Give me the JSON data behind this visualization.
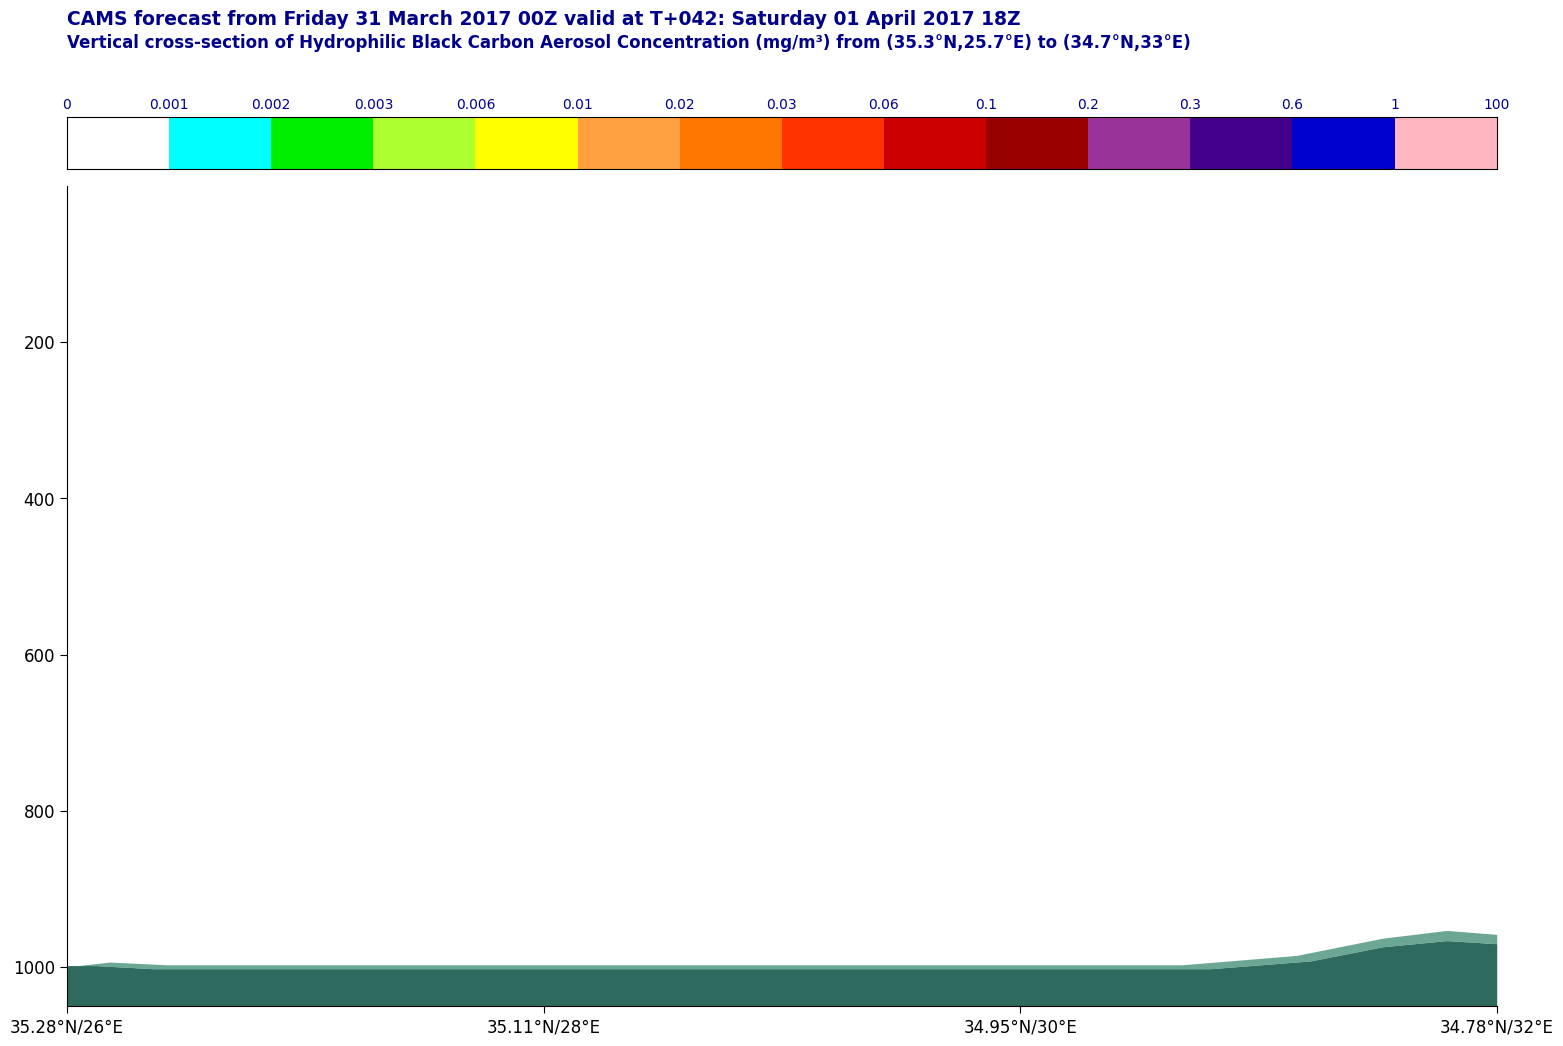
{
  "title1": "CAMS forecast from Friday 31 March 2017 00Z valid at T+042: Saturday 01 April 2017 18Z",
  "title2": "Vertical cross-section of Hydrophilic Black Carbon Aerosol Concentration (mg/m³) from (35.3°N,25.7°E) to (34.7°N,33°E)",
  "title_color": "#00008B",
  "colorbar_levels": [
    0,
    0.001,
    0.002,
    0.003,
    0.006,
    0.01,
    0.02,
    0.03,
    0.06,
    0.1,
    0.2,
    0.3,
    0.6,
    1,
    100
  ],
  "colorbar_colors": [
    "#FFFFFF",
    "#00FFFF",
    "#00EE00",
    "#ADFF2F",
    "#FFFF00",
    "#FFA040",
    "#FF7700",
    "#FF3300",
    "#CC0000",
    "#990000",
    "#993399",
    "#440088",
    "#0000CC",
    "#FFB6C1"
  ],
  "colorbar_tick_labels": [
    "0",
    "0.001",
    "0.002",
    "0.003",
    "0.006",
    "0.01",
    "0.02",
    "0.03",
    "0.06",
    "0.1",
    "0.2",
    "0.3",
    "0.6",
    "1",
    "100"
  ],
  "xlabel_ticks": [
    "35.28°N/26°E",
    "35.11°N/28°E",
    "34.95°N/30°E",
    "34.78°N/32°E"
  ],
  "yticks": [
    200,
    400,
    600,
    800,
    1000
  ],
  "ymin": 0,
  "ymax": 1050,
  "background_color": "#FFFFFF",
  "terrain_color_dark": "#2E6B5E",
  "terrain_color_light": "#3A8A70",
  "n_points": 500
}
